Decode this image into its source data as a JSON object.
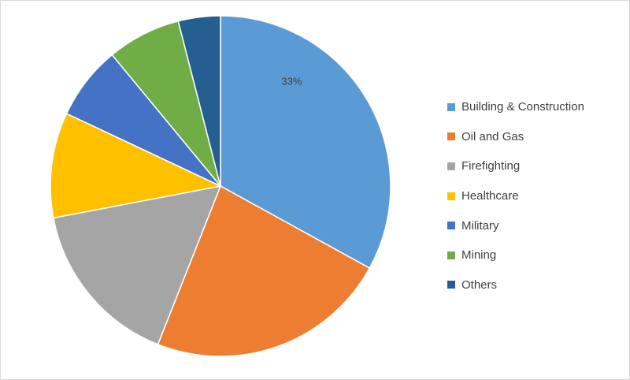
{
  "chart_data": {
    "type": "pie",
    "title": "",
    "start_angle_deg": 0,
    "direction": "clockwise",
    "legend_position": "right",
    "slices": [
      {
        "label": "Building & Construction",
        "value": 33,
        "color": "#5b9bd5",
        "data_label": "33%"
      },
      {
        "label": "Oil and Gas",
        "value": 23,
        "color": "#ed7d31",
        "data_label": ""
      },
      {
        "label": "Firefighting",
        "value": 16,
        "color": "#a5a5a5",
        "data_label": ""
      },
      {
        "label": "Healthcare",
        "value": 10,
        "color": "#ffc000",
        "data_label": ""
      },
      {
        "label": "Military",
        "value": 7,
        "color": "#4472c4",
        "data_label": ""
      },
      {
        "label": "Mining",
        "value": 7,
        "color": "#70ad47",
        "data_label": ""
      },
      {
        "label": "Others",
        "value": 4,
        "color": "#255e91",
        "data_label": ""
      }
    ]
  }
}
